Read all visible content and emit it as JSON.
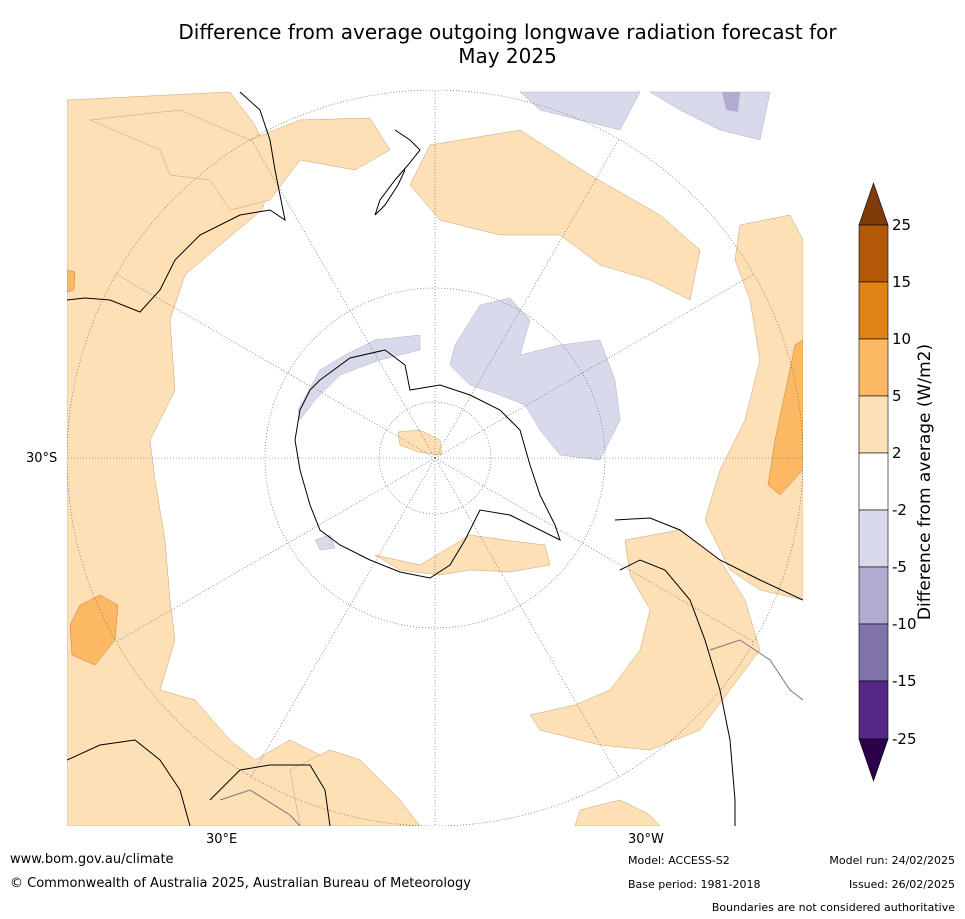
{
  "title": {
    "line1": "Difference from average outgoing longwave radiation forecast for",
    "line2": "May 2025"
  },
  "map_labels": {
    "lat_30s": "30°S",
    "lon_30e": "30°E",
    "lon_30w": "30°W"
  },
  "colorbar": {
    "label": "Difference from average (W/m2)",
    "ticks": [
      "25",
      "15",
      "10",
      "5",
      "2",
      "-2",
      "-5",
      "-10",
      "-15",
      "-25"
    ],
    "colors": {
      "over": "#7f3b08",
      "15_25": "#b35806",
      "10_15": "#e08214",
      "5_10": "#fdb863",
      "2_5": "#fee0b6",
      "neutral": "#ffffff",
      "m2_m5": "#d8daeb",
      "m5_m10": "#b2abd2",
      "m10_m15": "#8073ac",
      "m15_m25": "#542788",
      "under": "#2d004b"
    }
  },
  "footer": {
    "url": "www.bom.gov.au/climate",
    "copyright": "© Commonwealth of Australia 2025, Australian Bureau of Meteorology",
    "model": "Model: ACCESS-S2",
    "base_period": "Base period: 1981-2018",
    "model_run": "Model run: 24/02/2025",
    "issued": "Issued: 26/02/2025",
    "disclaimer": "Boundaries are not considered authoritative"
  }
}
